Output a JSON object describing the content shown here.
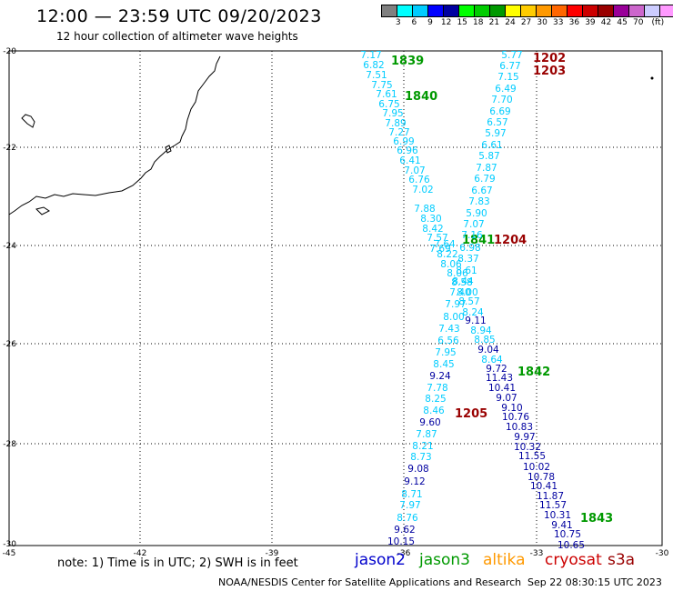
{
  "header": {
    "title": "12:00 — 23:59 UTC 09/20/2023",
    "subtitle": "12 hour collection of altimeter wave heights"
  },
  "scale": {
    "colors": [
      "#808080",
      "#00ffff",
      "#00ccff",
      "#0000ff",
      "#0000a0",
      "#00ff00",
      "#00cc00",
      "#009900",
      "#ffff00",
      "#ffcc00",
      "#ff9900",
      "#ff6600",
      "#ff0000",
      "#cc0000",
      "#990000",
      "#990099",
      "#cc66cc",
      "#ccccff",
      "#ff99ff",
      "#000000"
    ],
    "labels": [
      "3",
      "6",
      "9",
      "12",
      "15",
      "18",
      "21",
      "24",
      "27",
      "30",
      "33",
      "36",
      "39",
      "42",
      "45",
      "70"
    ],
    "unit": "(ft)"
  },
  "map": {
    "lat_labels": [
      "-20",
      "-22",
      "-24",
      "-26",
      "-28",
      "-30"
    ],
    "lon_labels": [
      "-45",
      "-42",
      "-39",
      "-36",
      "-33",
      "-30"
    ]
  },
  "tracks": [
    {
      "name": "1839",
      "color": "#009900",
      "points": [
        {
          "v": "7.17",
          "c": "#00ccff"
        },
        {
          "v": "6.82",
          "c": "#00ccff"
        },
        {
          "v": "7.51",
          "c": "#00ccff"
        },
        {
          "v": "7.75",
          "c": "#00ccff"
        },
        {
          "v": "7.61",
          "c": "#00ccff"
        },
        {
          "v": "6.75",
          "c": "#00ccff"
        },
        {
          "v": "7.95",
          "c": "#00ccff"
        },
        {
          "v": "7.89",
          "c": "#00ccff"
        },
        {
          "v": "7.27",
          "c": "#00ccff"
        },
        {
          "v": "6.99",
          "c": "#00ccff"
        },
        {
          "v": "6.96",
          "c": "#00ccff"
        },
        {
          "v": "6.41",
          "c": "#00ccff"
        },
        {
          "v": "7.07",
          "c": "#00ccff"
        },
        {
          "v": "6.76",
          "c": "#00ccff"
        },
        {
          "v": "7.02",
          "c": "#00ccff"
        },
        {
          "v": "7.88",
          "c": "#00ccff"
        },
        {
          "v": "8.30",
          "c": "#00ccff"
        },
        {
          "v": "8.42",
          "c": "#00ccff"
        },
        {
          "v": "7.57",
          "c": "#00ccff"
        },
        {
          "v": "7.69",
          "c": "#00ccff"
        }
      ]
    },
    {
      "name": "1840",
      "color": "#009900",
      "points": []
    },
    {
      "name": "1841",
      "color": "#009900",
      "points": [
        {
          "v": "7.64",
          "c": "#00ccff"
        },
        {
          "v": "8.22",
          "c": "#00ccff"
        },
        {
          "v": "8.06",
          "c": "#00ccff"
        },
        {
          "v": "8.06",
          "c": "#00ccff"
        },
        {
          "v": "8.58",
          "c": "#00ccff"
        },
        {
          "v": "7.40",
          "c": "#00ccff"
        },
        {
          "v": "7.97",
          "c": "#00ccff"
        },
        {
          "v": "8.00",
          "c": "#00ccff"
        },
        {
          "v": "7.43",
          "c": "#00ccff"
        },
        {
          "v": "6.56",
          "c": "#00ccff"
        },
        {
          "v": "7.95",
          "c": "#00ccff"
        },
        {
          "v": "8.45",
          "c": "#00ccff"
        },
        {
          "v": "9.24",
          "c": "#0000a0"
        },
        {
          "v": "7.78",
          "c": "#00ccff"
        },
        {
          "v": "8.25",
          "c": "#00ccff"
        },
        {
          "v": "8.46",
          "c": "#00ccff"
        },
        {
          "v": "9.60",
          "c": "#0000a0"
        },
        {
          "v": "7.87",
          "c": "#00ccff"
        },
        {
          "v": "8.21",
          "c": "#00ccff"
        },
        {
          "v": "8.73",
          "c": "#00ccff"
        },
        {
          "v": "9.08",
          "c": "#0000a0"
        },
        {
          "v": "9.12",
          "c": "#0000a0"
        },
        {
          "v": "8.71",
          "c": "#00ccff"
        },
        {
          "v": "7.97",
          "c": "#00ccff"
        },
        {
          "v": "8.76",
          "c": "#00ccff"
        },
        {
          "v": "9.62",
          "c": "#0000a0"
        },
        {
          "v": "10.15",
          "c": "#0000a0"
        }
      ]
    },
    {
      "name": "1202",
      "color": "#990000",
      "points": [
        {
          "v": "5.77",
          "c": "#00ccff"
        },
        {
          "v": "6.77",
          "c": "#00ccff"
        },
        {
          "v": "7.15",
          "c": "#00ccff"
        },
        {
          "v": "6.49",
          "c": "#00ccff"
        },
        {
          "v": "7.70",
          "c": "#00ccff"
        },
        {
          "v": "6.69",
          "c": "#00ccff"
        },
        {
          "v": "6.57",
          "c": "#00ccff"
        },
        {
          "v": "5.97",
          "c": "#00ccff"
        },
        {
          "v": "6.61",
          "c": "#00ccff"
        },
        {
          "v": "5.87",
          "c": "#00ccff"
        },
        {
          "v": "7.87",
          "c": "#00ccff"
        },
        {
          "v": "6.79",
          "c": "#00ccff"
        },
        {
          "v": "6.67",
          "c": "#00ccff"
        },
        {
          "v": "7.83",
          "c": "#00ccff"
        },
        {
          "v": "5.90",
          "c": "#00ccff"
        },
        {
          "v": "7.07",
          "c": "#00ccff"
        },
        {
          "v": "7.16",
          "c": "#00ccff"
        }
      ]
    },
    {
      "name": "1203",
      "color": "#990000",
      "points": []
    },
    {
      "name": "1204",
      "color": "#990000",
      "points": [
        {
          "v": "6.98",
          "c": "#00ccff"
        },
        {
          "v": "8.37",
          "c": "#00ccff"
        },
        {
          "v": "8.61",
          "c": "#00ccff"
        },
        {
          "v": "8.44",
          "c": "#00ccff"
        },
        {
          "v": "8.00",
          "c": "#00ccff"
        },
        {
          "v": "8.57",
          "c": "#00ccff"
        },
        {
          "v": "8.24",
          "c": "#00ccff"
        },
        {
          "v": "9.11",
          "c": "#0000a0"
        },
        {
          "v": "8.94",
          "c": "#00ccff"
        },
        {
          "v": "8.85",
          "c": "#00ccff"
        },
        {
          "v": "9.04",
          "c": "#0000a0"
        },
        {
          "v": "8.64",
          "c": "#00ccff"
        },
        {
          "v": "9.72",
          "c": "#0000a0"
        },
        {
          "v": "11.43",
          "c": "#0000a0"
        },
        {
          "v": "10.41",
          "c": "#0000a0"
        },
        {
          "v": "9.07",
          "c": "#0000a0"
        },
        {
          "v": "9.10",
          "c": "#0000a0"
        },
        {
          "v": "10.76",
          "c": "#0000a0"
        },
        {
          "v": "10.83",
          "c": "#0000a0"
        },
        {
          "v": "9.97",
          "c": "#0000a0"
        },
        {
          "v": "10.32",
          "c": "#0000a0"
        },
        {
          "v": "11.55",
          "c": "#0000a0"
        },
        {
          "v": "10.02",
          "c": "#0000a0"
        },
        {
          "v": "10.78",
          "c": "#0000a0"
        },
        {
          "v": "10.41",
          "c": "#0000a0"
        },
        {
          "v": "11.87",
          "c": "#0000a0"
        },
        {
          "v": "11.57",
          "c": "#0000a0"
        },
        {
          "v": "10.31",
          "c": "#0000a0"
        },
        {
          "v": "9.41",
          "c": "#0000a0"
        },
        {
          "v": "10.75",
          "c": "#0000a0"
        },
        {
          "v": "10.65",
          "c": "#0000a0"
        }
      ]
    },
    {
      "name": "1205",
      "color": "#990000",
      "points": []
    },
    {
      "name": "1842",
      "color": "#009900",
      "points": []
    },
    {
      "name": "1843",
      "color": "#009900",
      "points": []
    }
  ],
  "footer": {
    "note": "note:  1) Time is in UTC;  2) SWH is in feet",
    "legend": [
      {
        "label": "jason2",
        "color": "#0000cc"
      },
      {
        "label": "jason3",
        "color": "#009900"
      },
      {
        "label": "altika",
        "color": "#ff9900"
      },
      {
        "label": "cryosat",
        "color": "#cc0000"
      },
      {
        "label": "s3a",
        "color": "#990000"
      }
    ],
    "credit": "NOAA/NESDIS Center for Satellite Applications and Research",
    "timestamp": "Sep 22 08:30:15 UTC 2023"
  }
}
